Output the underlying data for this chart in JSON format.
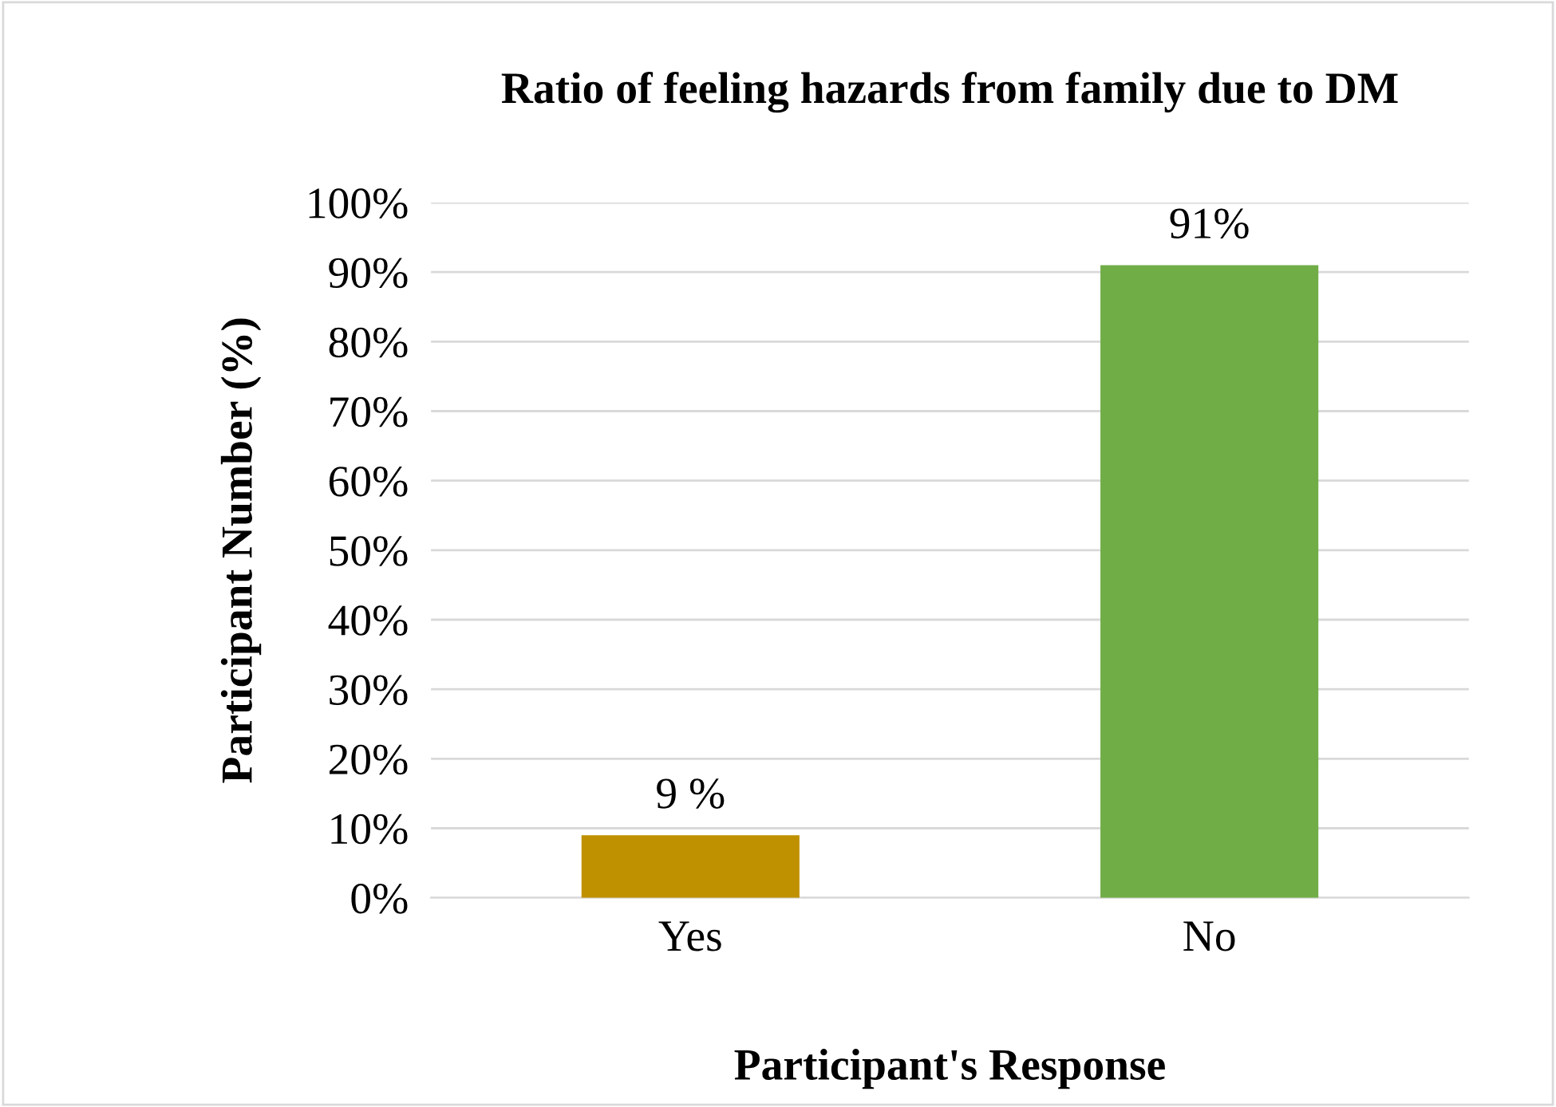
{
  "chart_data": {
    "type": "bar",
    "title": "Ratio of feeling hazards from family due to DM",
    "xlabel": "Participant's Response",
    "ylabel": "Participant Number (%)",
    "categories": [
      "Yes",
      "No"
    ],
    "values": [
      9,
      91
    ],
    "colors": [
      "#bf9000",
      "#70ad47"
    ],
    "value_labels": [
      "9 %",
      "91%"
    ],
    "ylim": [
      0,
      100
    ],
    "yticks": [
      {
        "value": 0,
        "label": "0%"
      },
      {
        "value": 10,
        "label": "10%"
      },
      {
        "value": 20,
        "label": "20%"
      },
      {
        "value": 30,
        "label": "30%"
      },
      {
        "value": 40,
        "label": "40%"
      },
      {
        "value": 50,
        "label": "50%"
      },
      {
        "value": 60,
        "label": "60%"
      },
      {
        "value": 70,
        "label": "70%"
      },
      {
        "value": 80,
        "label": "80%"
      },
      {
        "value": 90,
        "label": "90%"
      },
      {
        "value": 100,
        "label": "100%"
      }
    ],
    "grid": "y"
  }
}
